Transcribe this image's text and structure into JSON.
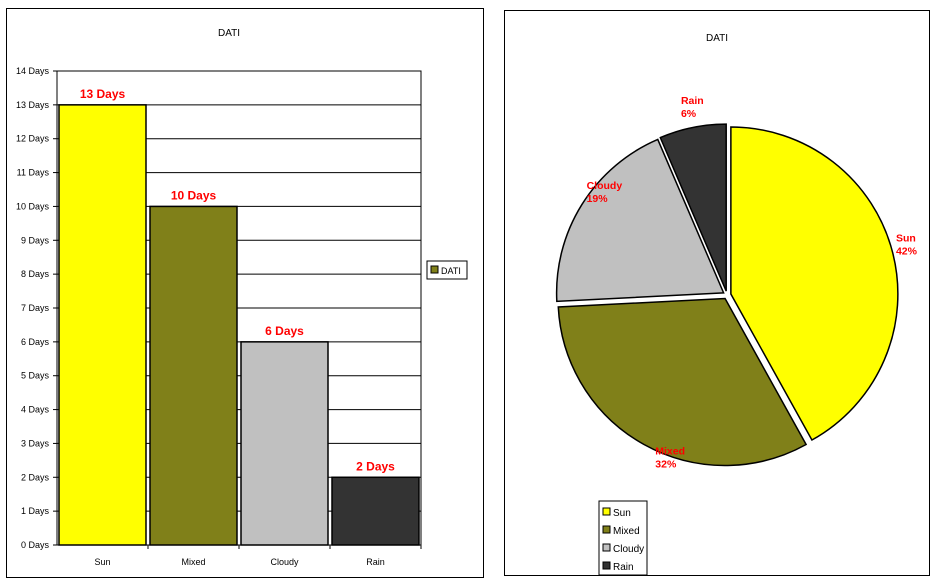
{
  "chart_data": [
    {
      "type": "bar",
      "title": "DATI",
      "categories": [
        "Sun",
        "Mixed",
        "Cloudy",
        "Rain"
      ],
      "values": [
        13,
        10,
        6,
        2
      ],
      "data_labels": [
        "13 Days",
        "10 Days",
        "6 Days",
        "2 Days"
      ],
      "colors": [
        "#ffff00",
        "#808019",
        "#c0c0c0",
        "#333333"
      ],
      "y_ticks": [
        "0 Days",
        "1 Days",
        "2 Days",
        "3 Days",
        "4 Days",
        "5 Days",
        "6 Days",
        "7 Days",
        "8 Days",
        "9 Days",
        "10 Days",
        "11 Days",
        "12 Days",
        "13 Days",
        "14 Days"
      ],
      "ylim": [
        0,
        14
      ],
      "grid": true,
      "legend": [
        "DATI"
      ],
      "legend_position": "right",
      "label_color": "#ff0000"
    },
    {
      "type": "pie",
      "title": "DATI",
      "categories": [
        "Sun",
        "Mixed",
        "Cloudy",
        "Rain"
      ],
      "values": [
        13,
        10,
        6,
        2
      ],
      "percent_labels": [
        "42%",
        "32%",
        "19%",
        "6%"
      ],
      "colors": [
        "#ffff00",
        "#808019",
        "#c0c0c0",
        "#333333"
      ],
      "legend": [
        "Sun",
        "Mixed",
        "Cloudy",
        "Rain"
      ],
      "legend_position": "bottom-left",
      "label_color": "#ff0000"
    }
  ]
}
